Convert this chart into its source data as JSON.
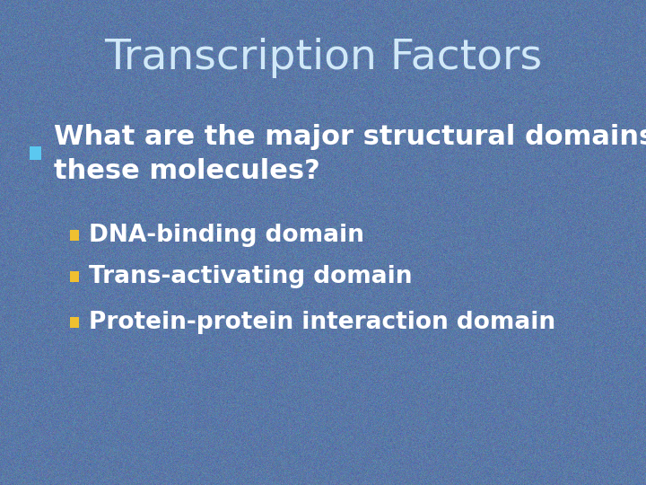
{
  "title": "Transcription Factors",
  "title_color": "#d0e8f8",
  "title_fontsize": 34,
  "title_fontstyle": "normal",
  "title_fontweight": "normal",
  "bullet1_text_line1": "What are the major structural domains of",
  "bullet1_text_line2": "these molecules?",
  "bullet1_color": "#ffffff",
  "bullet1_fontsize": 22,
  "bullet1_marker_color": "#5bc8f0",
  "sub_bullets": [
    "DNA-binding domain",
    "Trans-activating domain",
    "Protein-protein interaction domain"
  ],
  "sub_bullet_color": "#ffffff",
  "sub_bullet_fontsize": 19,
  "sub_bullet_marker_color": "#f0c030",
  "bg_base": "#5a78a8",
  "noise_std": 0.035,
  "noise_base": [
    0.355,
    0.472,
    0.655
  ]
}
